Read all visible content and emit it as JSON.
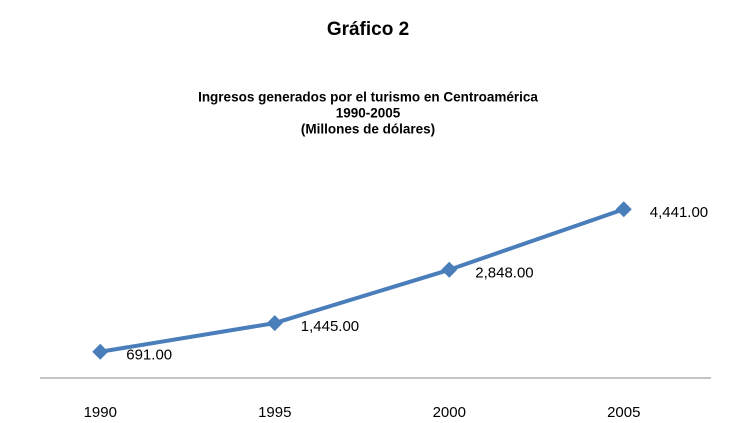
{
  "chart_data": {
    "type": "line",
    "figure_label": "Gráfico 2",
    "title": "Ingresos generados por el turismo en Centroamérica",
    "subtitle": [
      "1990-2005",
      "(Millones de dólares)"
    ],
    "categories": [
      "1990",
      "1995",
      "2000",
      "2005"
    ],
    "series": [
      {
        "name": "Ingresos",
        "color": "#4a7ebb",
        "values": [
          691,
          1445,
          2848,
          4441
        ],
        "value_labels": [
          "691.00",
          "1,445.00",
          "2,848.00",
          "4,441.00"
        ]
      }
    ],
    "ylim": [
      0,
      5000
    ]
  }
}
